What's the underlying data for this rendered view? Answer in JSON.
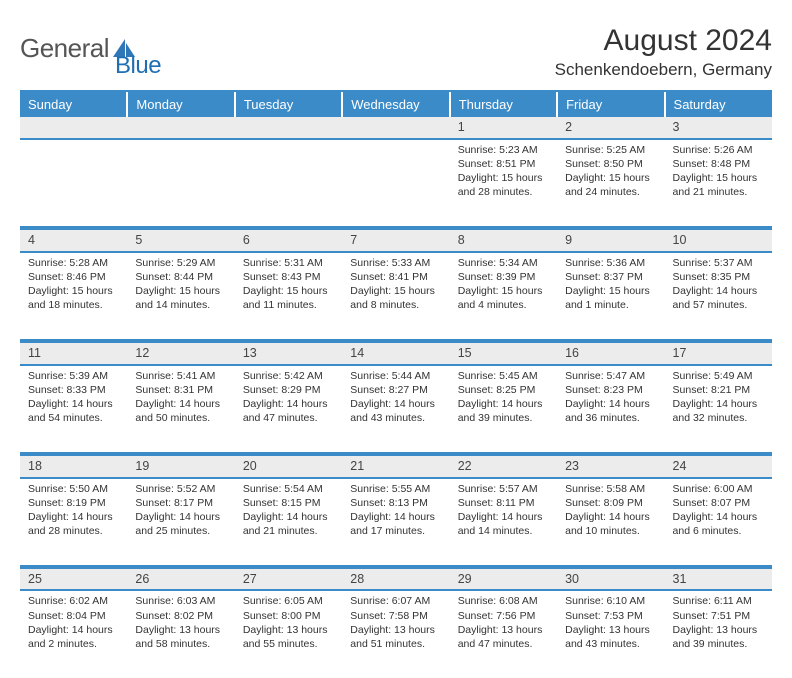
{
  "brand": {
    "name1": "General",
    "name2": "Blue"
  },
  "title": "August 2024",
  "location": "Schenkendoebern, Germany",
  "colors": {
    "header_bg": "#3b8bc9",
    "header_text": "#ffffff",
    "daynum_bg": "#ececec",
    "border": "#3b8bc9",
    "text": "#333333",
    "brand_gray": "#555555",
    "brand_blue": "#1f6fb2",
    "page_bg": "#ffffff"
  },
  "day_headers": [
    "Sunday",
    "Monday",
    "Tuesday",
    "Wednesday",
    "Thursday",
    "Friday",
    "Saturday"
  ],
  "weeks": [
    {
      "nums": [
        "",
        "",
        "",
        "",
        "1",
        "2",
        "3"
      ],
      "info": [
        "",
        "",
        "",
        "",
        "Sunrise: 5:23 AM\nSunset: 8:51 PM\nDaylight: 15 hours and 28 minutes.",
        "Sunrise: 5:25 AM\nSunset: 8:50 PM\nDaylight: 15 hours and 24 minutes.",
        "Sunrise: 5:26 AM\nSunset: 8:48 PM\nDaylight: 15 hours and 21 minutes."
      ]
    },
    {
      "nums": [
        "4",
        "5",
        "6",
        "7",
        "8",
        "9",
        "10"
      ],
      "info": [
        "Sunrise: 5:28 AM\nSunset: 8:46 PM\nDaylight: 15 hours and 18 minutes.",
        "Sunrise: 5:29 AM\nSunset: 8:44 PM\nDaylight: 15 hours and 14 minutes.",
        "Sunrise: 5:31 AM\nSunset: 8:43 PM\nDaylight: 15 hours and 11 minutes.",
        "Sunrise: 5:33 AM\nSunset: 8:41 PM\nDaylight: 15 hours and 8 minutes.",
        "Sunrise: 5:34 AM\nSunset: 8:39 PM\nDaylight: 15 hours and 4 minutes.",
        "Sunrise: 5:36 AM\nSunset: 8:37 PM\nDaylight: 15 hours and 1 minute.",
        "Sunrise: 5:37 AM\nSunset: 8:35 PM\nDaylight: 14 hours and 57 minutes."
      ]
    },
    {
      "nums": [
        "11",
        "12",
        "13",
        "14",
        "15",
        "16",
        "17"
      ],
      "info": [
        "Sunrise: 5:39 AM\nSunset: 8:33 PM\nDaylight: 14 hours and 54 minutes.",
        "Sunrise: 5:41 AM\nSunset: 8:31 PM\nDaylight: 14 hours and 50 minutes.",
        "Sunrise: 5:42 AM\nSunset: 8:29 PM\nDaylight: 14 hours and 47 minutes.",
        "Sunrise: 5:44 AM\nSunset: 8:27 PM\nDaylight: 14 hours and 43 minutes.",
        "Sunrise: 5:45 AM\nSunset: 8:25 PM\nDaylight: 14 hours and 39 minutes.",
        "Sunrise: 5:47 AM\nSunset: 8:23 PM\nDaylight: 14 hours and 36 minutes.",
        "Sunrise: 5:49 AM\nSunset: 8:21 PM\nDaylight: 14 hours and 32 minutes."
      ]
    },
    {
      "nums": [
        "18",
        "19",
        "20",
        "21",
        "22",
        "23",
        "24"
      ],
      "info": [
        "Sunrise: 5:50 AM\nSunset: 8:19 PM\nDaylight: 14 hours and 28 minutes.",
        "Sunrise: 5:52 AM\nSunset: 8:17 PM\nDaylight: 14 hours and 25 minutes.",
        "Sunrise: 5:54 AM\nSunset: 8:15 PM\nDaylight: 14 hours and 21 minutes.",
        "Sunrise: 5:55 AM\nSunset: 8:13 PM\nDaylight: 14 hours and 17 minutes.",
        "Sunrise: 5:57 AM\nSunset: 8:11 PM\nDaylight: 14 hours and 14 minutes.",
        "Sunrise: 5:58 AM\nSunset: 8:09 PM\nDaylight: 14 hours and 10 minutes.",
        "Sunrise: 6:00 AM\nSunset: 8:07 PM\nDaylight: 14 hours and 6 minutes."
      ]
    },
    {
      "nums": [
        "25",
        "26",
        "27",
        "28",
        "29",
        "30",
        "31"
      ],
      "info": [
        "Sunrise: 6:02 AM\nSunset: 8:04 PM\nDaylight: 14 hours and 2 minutes.",
        "Sunrise: 6:03 AM\nSunset: 8:02 PM\nDaylight: 13 hours and 58 minutes.",
        "Sunrise: 6:05 AM\nSunset: 8:00 PM\nDaylight: 13 hours and 55 minutes.",
        "Sunrise: 6:07 AM\nSunset: 7:58 PM\nDaylight: 13 hours and 51 minutes.",
        "Sunrise: 6:08 AM\nSunset: 7:56 PM\nDaylight: 13 hours and 47 minutes.",
        "Sunrise: 6:10 AM\nSunset: 7:53 PM\nDaylight: 13 hours and 43 minutes.",
        "Sunrise: 6:11 AM\nSunset: 7:51 PM\nDaylight: 13 hours and 39 minutes."
      ]
    }
  ]
}
